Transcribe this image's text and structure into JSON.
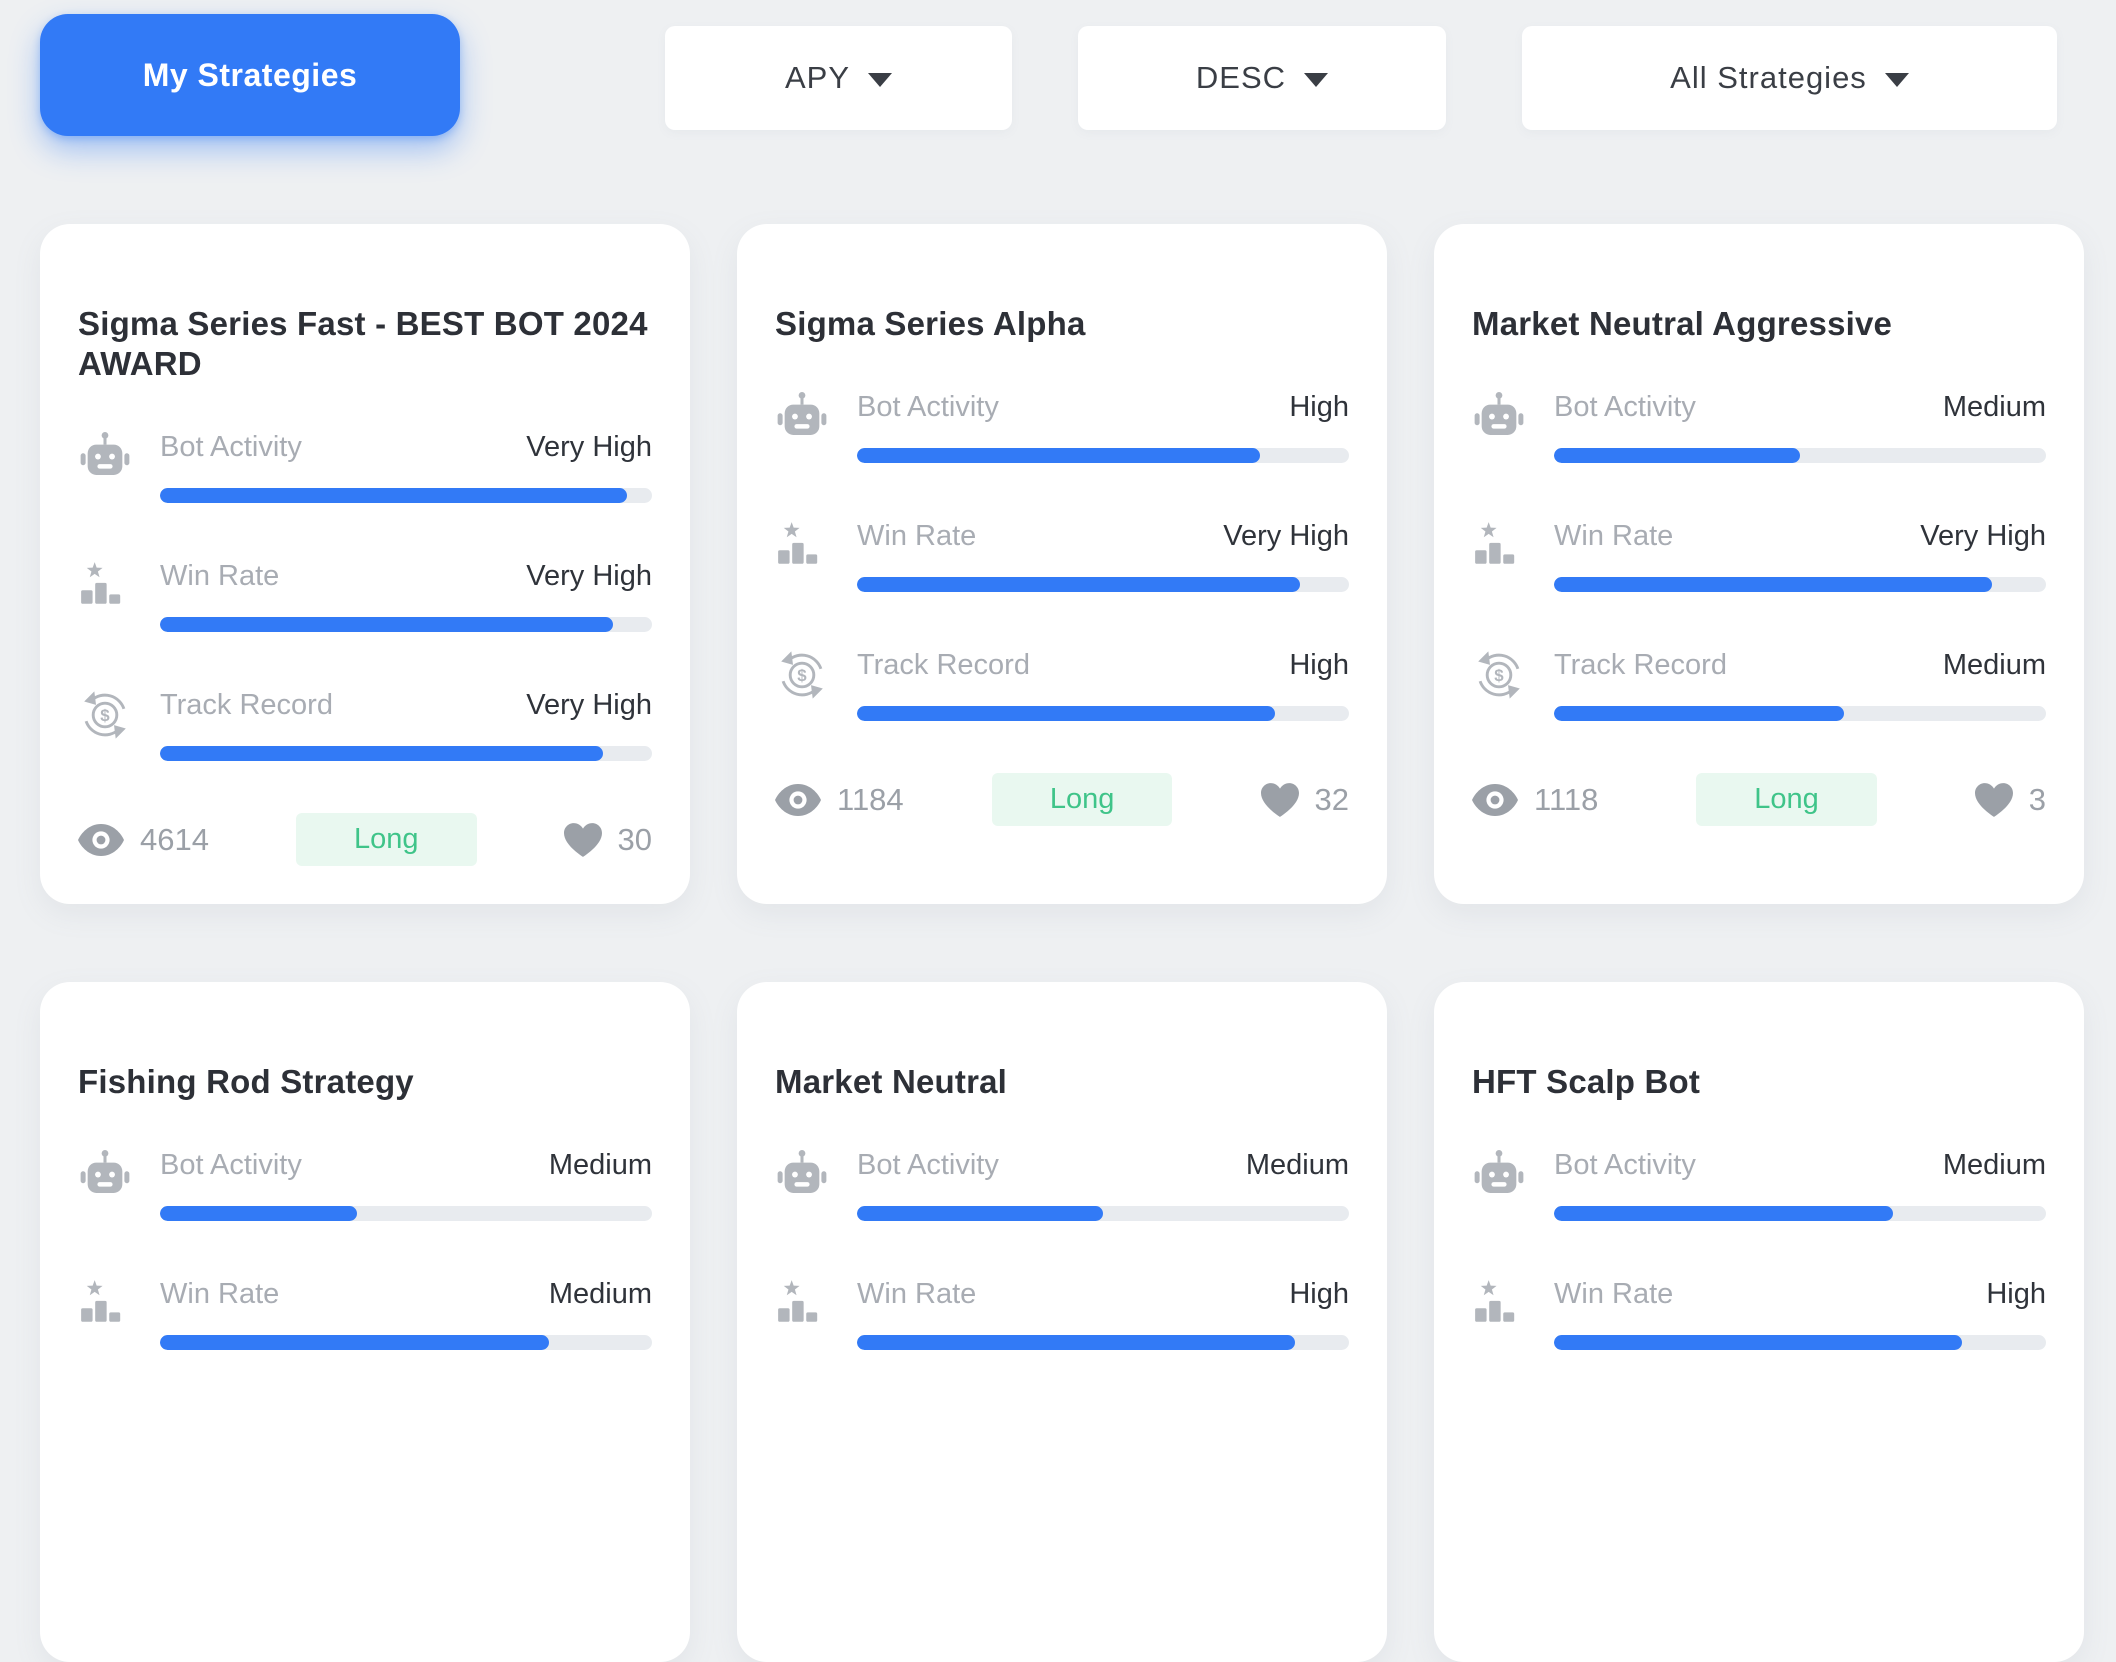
{
  "toolbar": {
    "my_strategies_label": "My Strategies",
    "sort_by_label": "APY",
    "sort_direction_label": "DESC",
    "strategy_filter_label": "All Strategies"
  },
  "colors": {
    "accent_blue": "#327af6",
    "bar_track_gray": "#e8ebef",
    "badge_green_bg": "#e9f8f0",
    "badge_green_text": "#3fc489"
  },
  "cards": [
    {
      "title": "Sigma Series Fast - BEST BOT 2024 AWARD",
      "stats": [
        {
          "icon": "robot",
          "label": "Bot Activity",
          "value": "Very High",
          "percent": 95
        },
        {
          "icon": "podium",
          "label": "Win Rate",
          "value": "Very High",
          "percent": 92
        },
        {
          "icon": "track",
          "label": "Track Record",
          "value": "Very High",
          "percent": 90
        }
      ],
      "views": "4614",
      "position_badge": "Long",
      "likes": "30"
    },
    {
      "title": "Sigma Series Alpha",
      "stats": [
        {
          "icon": "robot",
          "label": "Bot Activity",
          "value": "High",
          "percent": 82
        },
        {
          "icon": "podium",
          "label": "Win Rate",
          "value": "Very High",
          "percent": 90
        },
        {
          "icon": "track",
          "label": "Track Record",
          "value": "High",
          "percent": 85
        }
      ],
      "views": "1184",
      "position_badge": "Long",
      "likes": "32"
    },
    {
      "title": "Market Neutral Aggressive",
      "stats": [
        {
          "icon": "robot",
          "label": "Bot Activity",
          "value": "Medium",
          "percent": 50
        },
        {
          "icon": "podium",
          "label": "Win Rate",
          "value": "Very High",
          "percent": 89
        },
        {
          "icon": "track",
          "label": "Track Record",
          "value": "Medium",
          "percent": 59
        }
      ],
      "views": "1118",
      "position_badge": "Long",
      "likes": "3"
    },
    {
      "title": "Fishing Rod Strategy",
      "stats": [
        {
          "icon": "robot",
          "label": "Bot Activity",
          "value": "Medium",
          "percent": 40
        },
        {
          "icon": "podium",
          "label": "Win Rate",
          "value": "Medium",
          "percent": 79
        }
      ]
    },
    {
      "title": "Market Neutral",
      "stats": [
        {
          "icon": "robot",
          "label": "Bot Activity",
          "value": "Medium",
          "percent": 50
        },
        {
          "icon": "podium",
          "label": "Win Rate",
          "value": "High",
          "percent": 89
        }
      ]
    },
    {
      "title": "HFT Scalp Bot",
      "stats": [
        {
          "icon": "robot",
          "label": "Bot Activity",
          "value": "Medium",
          "percent": 69
        },
        {
          "icon": "podium",
          "label": "Win Rate",
          "value": "High",
          "percent": 83
        }
      ]
    }
  ]
}
